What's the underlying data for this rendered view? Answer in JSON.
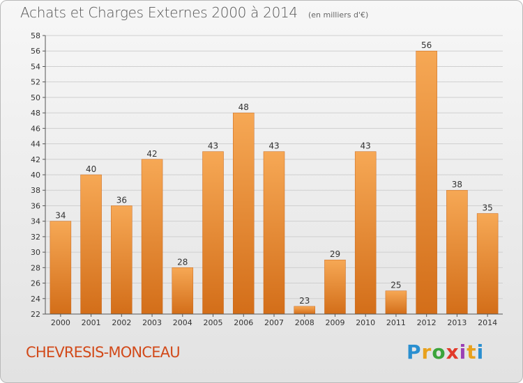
{
  "header": {
    "title": "Achats et Charges Externes 2000 à 2014",
    "subtitle": "(en milliers d'€)"
  },
  "commune": "CHEVRESIS-MONCEAU",
  "logo": {
    "text": "Proxiti",
    "colors": [
      "#2a8fd0",
      "#e8a11d",
      "#3ba43b",
      "#e23a2a",
      "#9b3fb5",
      "#e8a11d",
      "#2a8fd0"
    ]
  },
  "colors": {
    "bar_light": "#f6a855",
    "bar_dark": "#d36e19",
    "grid": "#cfcfcf",
    "commune_text": "#d24a1a"
  },
  "chart_data": {
    "type": "bar",
    "title": "Achats et Charges Externes 2000 à 2014",
    "subtitle": "(en milliers d'€)",
    "categories": [
      "2000",
      "2001",
      "2002",
      "2003",
      "2004",
      "2005",
      "2006",
      "2007",
      "2008",
      "2009",
      "2010",
      "2011",
      "2012",
      "2013",
      "2014"
    ],
    "values": [
      34,
      40,
      36,
      42,
      28,
      43,
      48,
      43,
      23,
      29,
      43,
      25,
      56,
      38,
      35
    ],
    "ylim": [
      22,
      58
    ],
    "yticks": [
      22,
      24,
      26,
      28,
      30,
      32,
      34,
      36,
      38,
      40,
      42,
      44,
      46,
      48,
      50,
      52,
      54,
      56,
      58
    ],
    "grid": true
  }
}
